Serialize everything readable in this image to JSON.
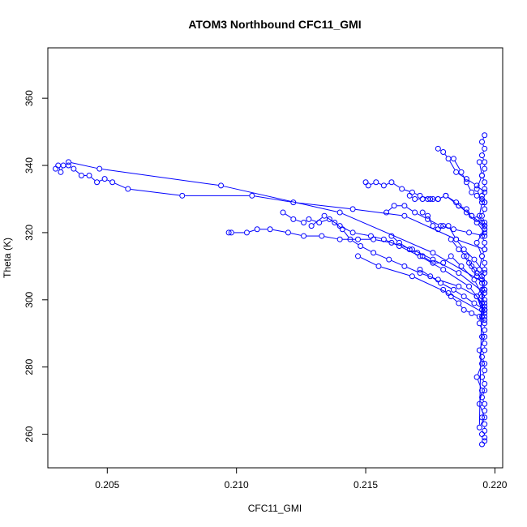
{
  "chart_data": {
    "type": "scatter",
    "title": "ATOM3 Northbound CFC11_GMI",
    "xlabel": "CFC11_GMI",
    "ylabel": "Theta (K)",
    "xlim": [
      0.2027,
      0.2203
    ],
    "ylim": [
      250,
      375
    ],
    "x_ticks": [
      {
        "value": 0.205,
        "label": "0.205"
      },
      {
        "value": 0.21,
        "label": "0.210"
      },
      {
        "value": 0.215,
        "label": "0.215"
      },
      {
        "value": 0.22,
        "label": "0.220"
      }
    ],
    "y_ticks": [
      {
        "value": 260,
        "label": "260"
      },
      {
        "value": 280,
        "label": "280"
      },
      {
        "value": 300,
        "label": "300"
      },
      {
        "value": 320,
        "label": "320"
      },
      {
        "value": 340,
        "label": "340"
      },
      {
        "value": 360,
        "label": "360"
      }
    ],
    "grid": false,
    "marker": "open-circle",
    "connected": true,
    "color": "#0000ff",
    "series": [
      {
        "x": [
          0.203,
          0.2031,
          0.2032,
          0.2033,
          0.2035,
          0.2037,
          0.204,
          0.2043,
          0.2046,
          0.2049,
          0.2052,
          0.2058,
          0.2079,
          0.2106,
          0.2122,
          0.2145,
          0.2165,
          0.2185,
          0.2196
        ],
        "y": [
          339,
          340,
          338,
          340,
          340,
          339,
          337,
          337,
          335,
          336,
          335,
          333,
          331,
          331,
          329,
          327,
          325,
          318,
          315
        ]
      },
      {
        "x": [
          0.2035,
          0.2047,
          0.2094,
          0.214,
          0.2176,
          0.2196
        ],
        "y": [
          341,
          339,
          334,
          326,
          314,
          305
        ]
      },
      {
        "x": [
          0.2097,
          0.2098,
          0.2104,
          0.2108,
          0.2113,
          0.212,
          0.2126,
          0.2133,
          0.214,
          0.2147,
          0.2153,
          0.216,
          0.2168,
          0.2176,
          0.2186,
          0.2196
        ],
        "y": [
          320,
          320,
          320,
          321,
          321,
          320,
          319,
          319,
          318,
          318,
          318,
          317,
          315,
          312,
          308,
          302
        ]
      },
      {
        "x": [
          0.2118,
          0.2122,
          0.2126,
          0.2128,
          0.2132,
          0.2136,
          0.214,
          0.2145,
          0.2152,
          0.2157,
          0.2163,
          0.2171,
          0.218,
          0.219,
          0.2196
        ],
        "y": [
          326,
          324,
          323,
          324,
          323,
          324,
          322,
          320,
          319,
          318,
          316,
          313,
          309,
          304,
          298
        ]
      },
      {
        "x": [
          0.2129,
          0.2134,
          0.2138,
          0.2141,
          0.2144,
          0.2148,
          0.2153,
          0.2159,
          0.2165,
          0.2171,
          0.2178,
          0.2186,
          0.2193,
          0.2196
        ],
        "y": [
          322,
          325,
          323,
          321,
          318,
          316,
          314,
          312,
          310,
          308,
          306,
          304,
          301,
          297
        ]
      },
      {
        "x": [
          0.2147,
          0.2155,
          0.2168,
          0.2182,
          0.2196
        ],
        "y": [
          313,
          310,
          307,
          302,
          296
        ]
      },
      {
        "x": [
          0.215,
          0.2151,
          0.2154,
          0.2157,
          0.216,
          0.2164,
          0.2168,
          0.2171,
          0.2175,
          0.2178,
          0.2181,
          0.2186,
          0.2191,
          0.2196
        ],
        "y": [
          335,
          334,
          335,
          334,
          335,
          333,
          332,
          331,
          330,
          330,
          331,
          328,
          325,
          322
        ]
      },
      {
        "x": [
          0.2158,
          0.2161,
          0.2165,
          0.2169,
          0.2174,
          0.2179,
          0.2184,
          0.219,
          0.2196
        ],
        "y": [
          326,
          328,
          328,
          326,
          324,
          322,
          321,
          320,
          319
        ]
      },
      {
        "x": [
          0.216,
          0.2163,
          0.2167,
          0.217,
          0.2172,
          0.2176,
          0.218,
          0.2183,
          0.2187,
          0.2192,
          0.2196
        ],
        "y": [
          319,
          317,
          315,
          314,
          313,
          311,
          311,
          313,
          310,
          306,
          300
        ]
      },
      {
        "x": [
          0.2167,
          0.2169,
          0.2172,
          0.2174,
          0.2176,
          0.2178,
          0.2181,
          0.2185,
          0.2189,
          0.2193,
          0.2196
        ],
        "y": [
          331,
          330,
          330,
          330,
          330,
          330,
          331,
          329,
          326,
          323,
          320
        ]
      },
      {
        "x": [
          0.2172,
          0.2174,
          0.2176,
          0.2178,
          0.218,
          0.2182,
          0.2185,
          0.2188,
          0.2192,
          0.2196
        ],
        "y": [
          326,
          325,
          322,
          321,
          322,
          322,
          318,
          315,
          312,
          308
        ]
      },
      {
        "x": [
          0.2178,
          0.218,
          0.2182,
          0.2185,
          0.2189,
          0.2193,
          0.2196
        ],
        "y": [
          345,
          344,
          342,
          338,
          336,
          334,
          332
        ]
      },
      {
        "x": [
          0.2184,
          0.2187,
          0.2189,
          0.2191,
          0.2193,
          0.2195,
          0.2196
        ],
        "y": [
          342,
          338,
          335,
          332,
          331,
          330,
          329
        ]
      },
      {
        "x": [
          0.2171,
          0.2175,
          0.2179,
          0.2184,
          0.2188,
          0.2192,
          0.2196
        ],
        "y": [
          309,
          307,
          305,
          303,
          301,
          299,
          297
        ]
      },
      {
        "x": [
          0.218,
          0.2183,
          0.2186,
          0.2188,
          0.2191,
          0.2194,
          0.2196
        ],
        "y": [
          303,
          301,
          299,
          297,
          296,
          295,
          294
        ]
      },
      {
        "x": [
          0.2183,
          0.2186,
          0.2189,
          0.2191,
          0.2193,
          0.2195,
          0.2196
        ],
        "y": [
          318,
          315,
          313,
          310,
          308,
          306,
          305
        ]
      },
      {
        "x": [
          0.2188,
          0.219,
          0.2192,
          0.2193,
          0.2195,
          0.2196
        ],
        "y": [
          313,
          311,
          309,
          307,
          305,
          303
        ]
      },
      {
        "x": [
          0.2186,
          0.2189,
          0.2191,
          0.2193,
          0.2195,
          0.2196
        ],
        "y": [
          328,
          327,
          325,
          324,
          323,
          322
        ]
      },
      {
        "x": [
          0.2196,
          0.2195,
          0.2196,
          0.2195,
          0.2196,
          0.2196,
          0.2195,
          0.2196,
          0.2196,
          0.2195,
          0.2196,
          0.2196,
          0.2195,
          0.2196,
          0.2196,
          0.2195,
          0.2196,
          0.2196,
          0.2195,
          0.2196,
          0.2196,
          0.2195,
          0.2196,
          0.2196,
          0.2195,
          0.2196,
          0.2196,
          0.2195,
          0.2196,
          0.2196,
          0.2195,
          0.2196,
          0.2196,
          0.2195,
          0.2196,
          0.2196,
          0.2195,
          0.2196,
          0.2196,
          0.2195,
          0.2196,
          0.2196,
          0.2195,
          0.2196,
          0.2196,
          0.2195,
          0.2196,
          0.2196,
          0.2195
        ],
        "y": [
          349,
          347,
          345,
          343,
          341,
          339,
          337,
          335,
          333,
          331,
          329,
          327,
          325,
          323,
          321,
          319,
          317,
          315,
          313,
          311,
          309,
          307,
          305,
          303,
          301,
          299,
          297,
          295,
          293,
          291,
          289,
          287,
          285,
          283,
          281,
          279,
          277,
          275,
          273,
          271,
          269,
          267,
          265,
          263,
          261,
          260,
          259,
          258,
          257
        ]
      },
      {
        "x": [
          0.2194,
          0.2195,
          0.2193,
          0.2195,
          0.2194,
          0.2196,
          0.2193,
          0.2195,
          0.2194,
          0.2196,
          0.2193,
          0.2195,
          0.2194,
          0.2196,
          0.2194,
          0.2195,
          0.2193,
          0.2195,
          0.2194,
          0.2196,
          0.2194,
          0.2195,
          0.2195,
          0.2196
        ],
        "y": [
          341,
          337,
          333,
          329,
          325,
          321,
          317,
          313,
          309,
          305,
          301,
          297,
          293,
          289,
          285,
          281,
          277,
          273,
          269,
          265,
          262,
          303,
          299,
          295
        ]
      }
    ]
  }
}
